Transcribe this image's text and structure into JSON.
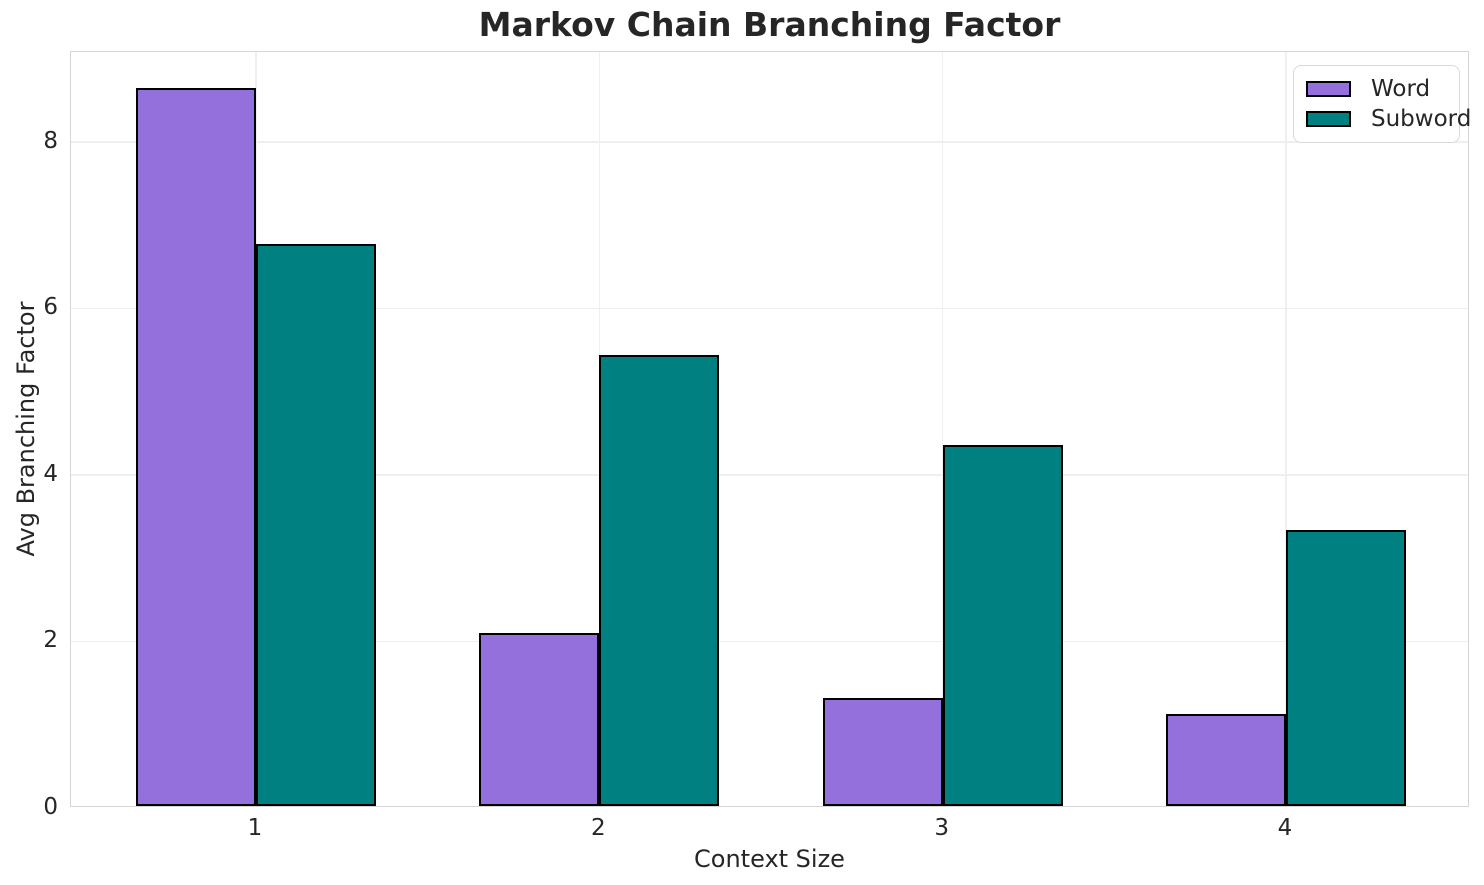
{
  "chart_data": {
    "type": "bar",
    "title": "Markov Chain Branching Factor",
    "xlabel": "Context Size",
    "ylabel": "Avg Branching Factor",
    "categories": [
      "1",
      "2",
      "3",
      "4"
    ],
    "series": [
      {
        "name": "Word",
        "color": "#9370DB",
        "values": [
          8.62,
          2.08,
          1.3,
          1.1
        ]
      },
      {
        "name": "Subword",
        "color": "#008080",
        "values": [
          6.75,
          5.42,
          4.34,
          3.32
        ]
      }
    ],
    "yticks": [
      0,
      2,
      4,
      6,
      8
    ],
    "ylim": [
      0,
      9.08
    ],
    "grid": true,
    "legend_position": "upper right",
    "bar_edge_color": "#000000",
    "grid_color": "#efefef",
    "spine_color": "#d5d5d5",
    "text_color": "#262626"
  }
}
